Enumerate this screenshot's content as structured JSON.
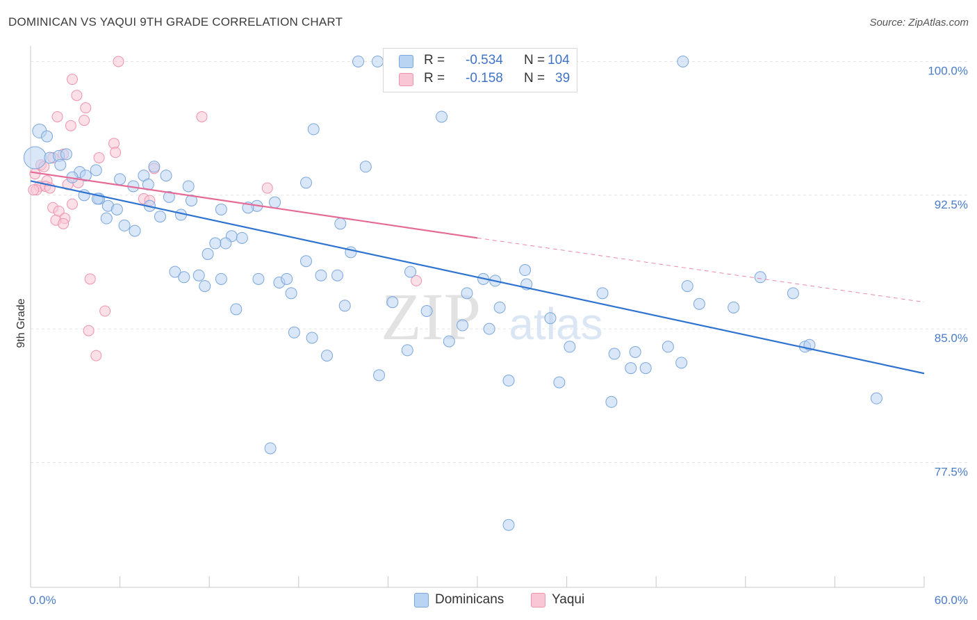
{
  "title": "DOMINICAN VS YAQUI 9TH GRADE CORRELATION CHART",
  "source": "Source: ZipAtlas.com",
  "watermark": {
    "zip": "ZIP",
    "atlas": "atlas"
  },
  "colors": {
    "dominicans_fill": "#b9d3f3",
    "dominicans_stroke": "#7aa6dd",
    "dominicans_line": "#2f73d1",
    "yaqui_fill": "#f9c6d5",
    "yaqui_stroke": "#ee92ad",
    "yaqui_line": "#e56a95",
    "tick_label": "#4a7cc9",
    "grid": "#e3e3e3"
  },
  "legend": {
    "rows": [
      {
        "r_label": "R = ",
        "r_value": "-0.534",
        "n_label": "N = ",
        "n_value": "104"
      },
      {
        "r_label": "R = ",
        "r_value": "-0.158",
        "n_label": "N = ",
        "n_value": "39"
      }
    ]
  },
  "chart_data": {
    "type": "scatter",
    "title": "DOMINICAN VS YAQUI 9TH GRADE CORRELATION CHART",
    "xlabel": "",
    "ylabel": "9th Grade",
    "xlim": [
      0,
      60
    ],
    "ylim": [
      70.5,
      101.5
    ],
    "x_tick_labels": [
      "0.0%",
      "60.0%"
    ],
    "y_ticks": [
      77.5,
      85.0,
      92.5,
      100.0
    ],
    "y_tick_labels": [
      "77.5%",
      "85.0%",
      "92.5%",
      "100.0%"
    ],
    "grid": true,
    "legend_position": "bottom",
    "series": [
      {
        "name": "Dominicans",
        "r": -0.534,
        "n": 104,
        "trend": {
          "x": [
            0,
            60
          ],
          "y": [
            93.3,
            82.5
          ]
        },
        "points": [
          [
            0.3,
            94.6
          ],
          [
            0.6,
            96.1
          ],
          [
            1.1,
            95.8
          ],
          [
            1.3,
            94.6
          ],
          [
            1.9,
            94.7
          ],
          [
            2.4,
            94.8
          ],
          [
            2.0,
            94.2
          ],
          [
            3.3,
            93.8
          ],
          [
            4.4,
            93.9
          ],
          [
            2.8,
            93.5
          ],
          [
            3.7,
            93.6
          ],
          [
            3.6,
            92.5
          ],
          [
            4.6,
            92.3
          ],
          [
            5.2,
            91.9
          ],
          [
            5.8,
            91.7
          ],
          [
            5.1,
            91.2
          ],
          [
            6.0,
            93.4
          ],
          [
            6.9,
            93.0
          ],
          [
            7.6,
            93.6
          ],
          [
            7.9,
            93.1
          ],
          [
            8.3,
            94.1
          ],
          [
            9.1,
            93.6
          ],
          [
            10.6,
            93.0
          ],
          [
            9.3,
            92.4
          ],
          [
            10.8,
            92.2
          ],
          [
            8.0,
            91.9
          ],
          [
            8.7,
            91.3
          ],
          [
            10.1,
            91.4
          ],
          [
            6.3,
            90.8
          ],
          [
            7.0,
            90.5
          ],
          [
            12.8,
            91.7
          ],
          [
            15.2,
            91.9
          ],
          [
            14.6,
            91.8
          ],
          [
            16.4,
            92.1
          ],
          [
            13.5,
            90.2
          ],
          [
            13.1,
            89.8
          ],
          [
            12.4,
            89.8
          ],
          [
            14.2,
            90.1
          ],
          [
            11.9,
            89.2
          ],
          [
            9.7,
            88.2
          ],
          [
            10.3,
            87.9
          ],
          [
            11.3,
            88.0
          ],
          [
            11.7,
            87.4
          ],
          [
            12.8,
            87.8
          ],
          [
            15.3,
            87.8
          ],
          [
            16.7,
            87.6
          ],
          [
            17.2,
            87.8
          ],
          [
            17.5,
            87.0
          ],
          [
            13.8,
            86.1
          ],
          [
            18.5,
            88.8
          ],
          [
            19.5,
            88.0
          ],
          [
            20.6,
            88.0
          ],
          [
            21.5,
            89.3
          ],
          [
            20.8,
            90.9
          ],
          [
            18.5,
            93.2
          ],
          [
            19.0,
            96.2
          ],
          [
            22.5,
            94.1
          ],
          [
            25.5,
            88.2
          ],
          [
            24.3,
            86.5
          ],
          [
            21.1,
            86.3
          ],
          [
            17.7,
            84.8
          ],
          [
            18.9,
            84.5
          ],
          [
            19.9,
            83.5
          ],
          [
            23.4,
            82.4
          ],
          [
            25.3,
            83.8
          ],
          [
            26.6,
            86.0
          ],
          [
            28.1,
            84.3
          ],
          [
            29.0,
            85.2
          ],
          [
            29.3,
            87.0
          ],
          [
            30.4,
            87.8
          ],
          [
            31.2,
            87.7
          ],
          [
            30.8,
            85.0
          ],
          [
            31.5,
            86.2
          ],
          [
            32.1,
            82.1
          ],
          [
            33.2,
            88.3
          ],
          [
            33.3,
            87.5
          ],
          [
            34.9,
            85.6
          ],
          [
            35.5,
            82.0
          ],
          [
            36.2,
            84.0
          ],
          [
            38.4,
            87.0
          ],
          [
            39.2,
            83.6
          ],
          [
            40.3,
            82.8
          ],
          [
            40.6,
            83.7
          ],
          [
            41.3,
            82.8
          ],
          [
            42.8,
            84.0
          ],
          [
            43.7,
            83.1
          ],
          [
            44.1,
            87.4
          ],
          [
            44.9,
            86.4
          ],
          [
            47.2,
            86.2
          ],
          [
            49.0,
            87.9
          ],
          [
            51.2,
            87.0
          ],
          [
            52.0,
            84.0
          ],
          [
            52.3,
            84.1
          ],
          [
            56.8,
            81.1
          ],
          [
            39.0,
            80.9
          ],
          [
            16.1,
            78.3
          ],
          [
            32.1,
            74.0
          ],
          [
            27.6,
            96.9
          ],
          [
            22.0,
            100.0
          ],
          [
            23.3,
            100.0
          ],
          [
            30.0,
            100.0
          ],
          [
            43.8,
            100.0
          ],
          [
            30.5,
            100.0
          ],
          [
            4.5,
            92.3
          ]
        ]
      },
      {
        "name": "Yaqui",
        "r": -0.158,
        "n": 39,
        "trend": {
          "x": [
            0,
            30
          ],
          "y": [
            93.8,
            90.1
          ]
        },
        "trend_dashed": {
          "x": [
            30,
            60
          ],
          "y": [
            90.1,
            86.5
          ]
        },
        "points": [
          [
            5.9,
            100.0
          ],
          [
            2.8,
            99.0
          ],
          [
            3.1,
            98.1
          ],
          [
            3.7,
            97.4
          ],
          [
            3.6,
            96.7
          ],
          [
            1.8,
            96.9
          ],
          [
            2.7,
            96.4
          ],
          [
            11.5,
            96.9
          ],
          [
            5.6,
            95.4
          ],
          [
            5.7,
            94.9
          ],
          [
            4.6,
            94.6
          ],
          [
            2.2,
            94.8
          ],
          [
            1.5,
            94.6
          ],
          [
            0.7,
            94.2
          ],
          [
            0.9,
            94.1
          ],
          [
            0.3,
            93.7
          ],
          [
            1.1,
            93.3
          ],
          [
            0.6,
            93.0
          ],
          [
            0.4,
            92.8
          ],
          [
            1.0,
            93.0
          ],
          [
            1.3,
            92.9
          ],
          [
            2.5,
            93.1
          ],
          [
            3.2,
            93.2
          ],
          [
            7.6,
            92.3
          ],
          [
            8.3,
            94.0
          ],
          [
            15.9,
            92.9
          ],
          [
            1.5,
            91.8
          ],
          [
            1.9,
            91.6
          ],
          [
            2.8,
            92.0
          ],
          [
            2.3,
            91.2
          ],
          [
            1.7,
            91.1
          ],
          [
            2.2,
            90.9
          ],
          [
            4.0,
            87.8
          ],
          [
            5.0,
            86.0
          ],
          [
            3.9,
            84.9
          ],
          [
            4.4,
            83.5
          ],
          [
            25.9,
            87.7
          ],
          [
            8.0,
            92.2
          ],
          [
            0.2,
            92.8
          ]
        ]
      }
    ]
  }
}
